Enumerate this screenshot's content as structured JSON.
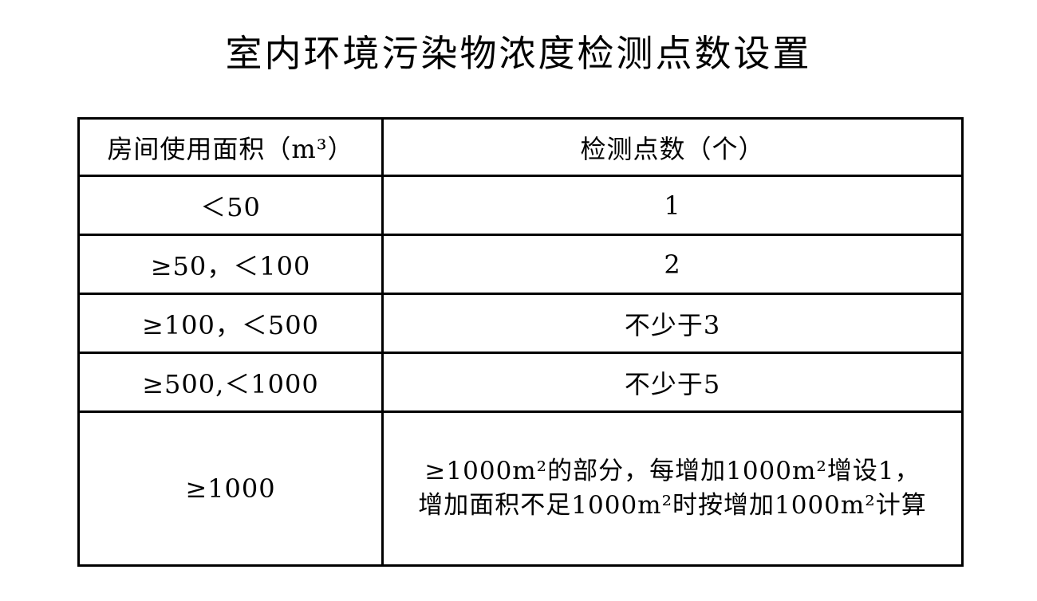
{
  "page": {
    "background_color": "#ffffff",
    "text_color": "#000000",
    "border_color": "#000000"
  },
  "title": "室内环境污染物浓度检测点数设置",
  "table": {
    "headers": {
      "area": "房间使用面积（m³）",
      "points": "检测点数（个）"
    },
    "rows": [
      {
        "area": "＜50",
        "points": [
          "1"
        ]
      },
      {
        "area": "≥50，＜100",
        "points": [
          "2"
        ]
      },
      {
        "area": "≥100，＜500",
        "points": [
          "不少于3"
        ]
      },
      {
        "area": "≥500,＜1000",
        "points": [
          "不少于5"
        ]
      },
      {
        "area": "≥1000",
        "points": [
          "≥1000m²的部分，每增加1000m²增设1，",
          "增加面积不足1000m²时按增加1000m²计算"
        ]
      }
    ]
  }
}
